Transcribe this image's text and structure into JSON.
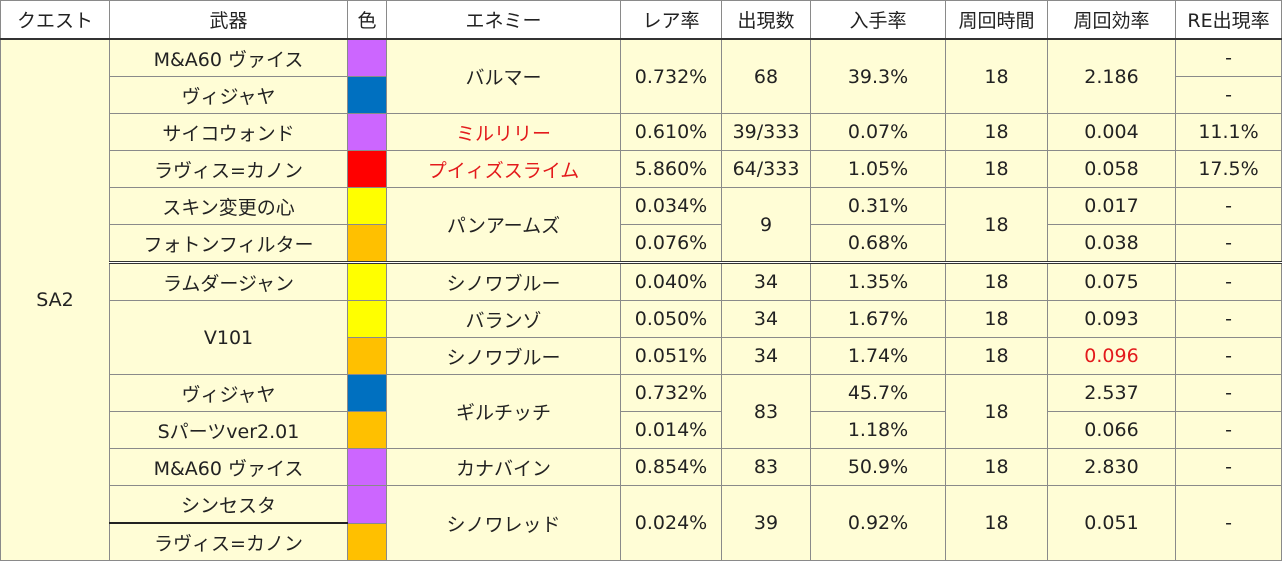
{
  "headers": {
    "quest": "クエスト",
    "weapon": "武器",
    "color": "色",
    "enemy": "エネミー",
    "rare_rate": "レア率",
    "appearances": "出現数",
    "obtain_rate": "入手率",
    "loop_time": "周回時間",
    "loop_efficiency": "周回効率",
    "re_rate": "RE出現率"
  },
  "quest": "SA2",
  "colors": {
    "purple": "#cc66ff",
    "blue": "#0070c0",
    "red": "#ff0000",
    "yellow": "#ffff00",
    "orange": "#ffc000",
    "row_bg": "#fffdd6",
    "highlight_text": "#e31a1c"
  },
  "rows": [
    {
      "weapon": "M&A60 ヴァイス",
      "color": "purple",
      "enemy": "バルマー",
      "rare": "0.732%",
      "count": "68",
      "obtain": "39.3%",
      "time": "18",
      "eff": "2.186",
      "re": "-"
    },
    {
      "weapon": "ヴィジャヤ",
      "color": "blue",
      "re": "-"
    },
    {
      "weapon": "サイコウォンド",
      "color": "purple",
      "enemy": "ミルリリー",
      "rare": "0.610%",
      "count": "39/333",
      "obtain": "0.07%",
      "time": "18",
      "eff": "0.004",
      "re": "11.1%"
    },
    {
      "weapon": "ラヴィス=カノン",
      "color": "red",
      "enemy": "プイィズスライム",
      "rare": "5.860%",
      "count": "64/333",
      "obtain": "1.05%",
      "time": "18",
      "eff": "0.058",
      "re": "17.5%"
    },
    {
      "weapon": "スキン変更の心",
      "color": "yellow",
      "enemy": "パンアームズ",
      "rare": "0.034%",
      "count": "9",
      "obtain": "0.31%",
      "time": "18",
      "eff": "0.017",
      "re": "-"
    },
    {
      "weapon": "フォトンフィルター",
      "color": "orange",
      "rare": "0.076%",
      "obtain": "0.68%",
      "eff": "0.038",
      "re": "-"
    },
    {
      "weapon": "ラムダージャン",
      "color": "yellow",
      "enemy": "シノワブルー",
      "rare": "0.040%",
      "count": "34",
      "obtain": "1.35%",
      "time": "18",
      "eff": "0.075",
      "re": "-"
    },
    {
      "weapon": "V101",
      "color": "yellow",
      "enemy": "バランゾ",
      "rare": "0.050%",
      "count": "34",
      "obtain": "1.67%",
      "time": "18",
      "eff": "0.093",
      "re": "-"
    },
    {
      "color": "orange",
      "enemy": "シノワブルー",
      "rare": "0.051%",
      "count": "34",
      "obtain": "1.74%",
      "time": "18",
      "eff": "0.096",
      "re": "-"
    },
    {
      "weapon": "ヴィジャヤ",
      "color": "blue",
      "enemy": "ギルチッチ",
      "rare": "0.732%",
      "count": "83",
      "obtain": "45.7%",
      "time": "18",
      "eff": "2.537",
      "re": "-"
    },
    {
      "weapon": "Sパーツver2.01",
      "color": "orange",
      "rare": "0.014%",
      "obtain": "1.18%",
      "eff": "0.066",
      "re": "-"
    },
    {
      "weapon": "M&A60 ヴァイス",
      "color": "purple",
      "enemy": "カナバイン",
      "rare": "0.854%",
      "count": "83",
      "obtain": "50.9%",
      "time": "18",
      "eff": "2.830",
      "re": "-"
    },
    {
      "weapon": "シンセスタ",
      "color": "purple",
      "enemy": "シノワレッド",
      "rare": "0.024%",
      "count": "39",
      "obtain": "0.92%",
      "time": "18",
      "eff": "0.051",
      "re": "-"
    },
    {
      "weapon": "ラヴィス=カノン",
      "color": "orange"
    }
  ]
}
